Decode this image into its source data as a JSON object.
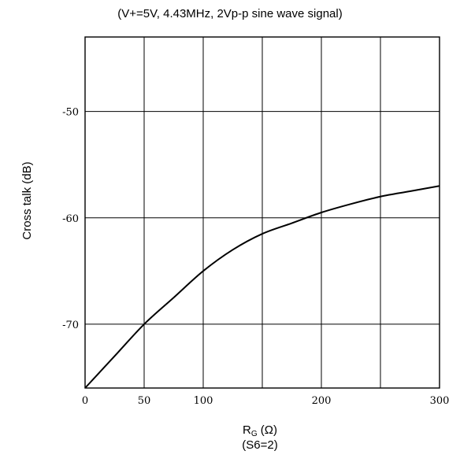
{
  "chart_data": {
    "type": "line",
    "title": "(V+=5V, 4.43MHz, 2Vp-p sine wave signal)",
    "ylabel": "Cross talk (dB)",
    "xlabel_main": "R",
    "xlabel_sub": "G",
    "xlabel_unit": " (Ω)",
    "xlabel_note": "(S6=2)",
    "xlim": [
      0,
      300
    ],
    "ylim": [
      -76,
      -43
    ],
    "grid": true,
    "x_ticks": [
      0,
      50,
      100,
      200,
      300
    ],
    "x_tick_labels": [
      "0",
      "50",
      "100",
      "200",
      "300"
    ],
    "y_ticks": [
      -50,
      -60,
      -70
    ],
    "y_tick_labels": [
      "-50",
      "-60",
      "-70"
    ],
    "x_gridlines": [
      50,
      100,
      150,
      200,
      250
    ],
    "y_gridlines": [
      -50,
      -60,
      -70
    ],
    "series": [
      {
        "x": [
          0,
          25,
          50,
          75,
          100,
          125,
          150,
          175,
          200,
          225,
          250,
          275,
          300
        ],
        "y": [
          -76,
          -73,
          -70,
          -67.5,
          -65,
          -63,
          -61.5,
          -60.5,
          -59.5,
          -58.7,
          -58,
          -57.5,
          -57
        ]
      }
    ]
  }
}
